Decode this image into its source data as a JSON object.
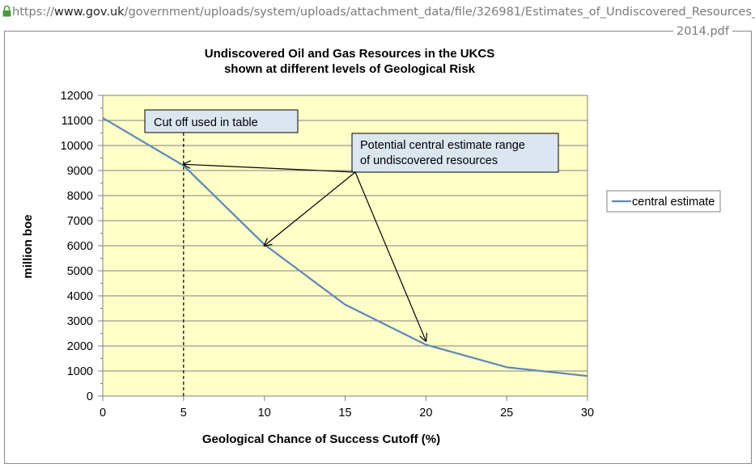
{
  "browser": {
    "url_scheme": "https://",
    "url_host": "www.gov.uk",
    "url_path": "/government/uploads/system/uploads/attachment_data/file/326981/Estimates_of_Undiscovered_Resources_",
    "url_wrap": "2014.pdf",
    "lock_color": "#4a9a3a"
  },
  "colors": {
    "plot_bg": "#ffffc8",
    "line": "#5b86b8",
    "annotation_bg": "#dce6f1",
    "grid": "#808080"
  },
  "chart_data": {
    "type": "line",
    "title": "Undiscovered Oil and Gas Resources in the UKCS",
    "subtitle": "shown at different levels of Geological Risk",
    "xlabel": "Geological Chance of Success Cutoff (%)",
    "ylabel": "million boe",
    "xlim": [
      0,
      30
    ],
    "ylim": [
      0,
      12000
    ],
    "x_ticks": [
      0,
      5,
      10,
      15,
      20,
      25,
      30
    ],
    "y_ticks": [
      0,
      1000,
      2000,
      3000,
      4000,
      5000,
      6000,
      7000,
      8000,
      9000,
      10000,
      11000,
      12000
    ],
    "grid": true,
    "legend_position": "right",
    "series": [
      {
        "name": "central estimate",
        "x": [
          0,
          5,
          10,
          15,
          20,
          25,
          30
        ],
        "y": [
          11100,
          9200,
          6050,
          3650,
          2050,
          1150,
          800
        ]
      }
    ],
    "cutoff_line": {
      "x": 5
    },
    "annotations": {
      "cutoff_label": "Cut off used in table",
      "range_label_line1": "Potential central estimate range",
      "range_label_line2": "of undiscovered resources",
      "arrow_targets": [
        {
          "x": 5,
          "y": 9250
        },
        {
          "x": 10,
          "y": 6000
        },
        {
          "x": 20,
          "y": 2200
        }
      ]
    }
  }
}
